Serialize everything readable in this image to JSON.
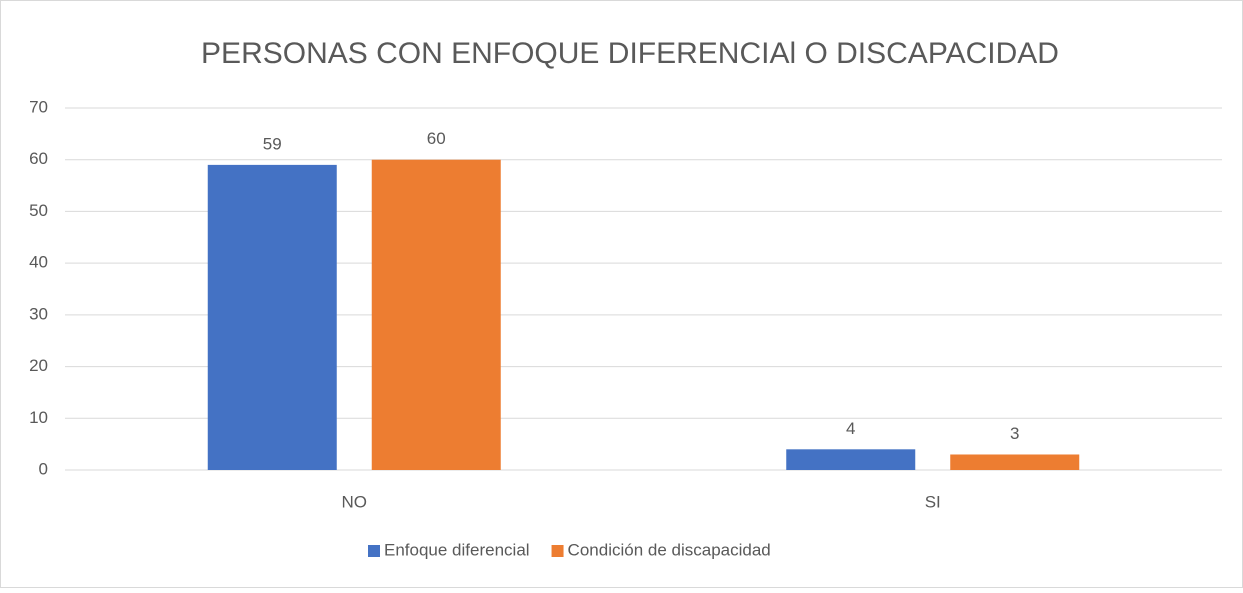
{
  "chart_data": {
    "type": "bar",
    "title": "PERSONAS CON ENFOQUE DIFERENCIAl O DISCAPACIDAD",
    "categories": [
      "NO",
      "SI"
    ],
    "series": [
      {
        "name": "Enfoque diferencial",
        "color": "#4472c4",
        "values": [
          59,
          4
        ]
      },
      {
        "name": "Condición de discapacidad",
        "color": "#ed7d31",
        "values": [
          60,
          3
        ]
      }
    ],
    "ylim": [
      0,
      70
    ],
    "yticks": [
      0,
      10,
      20,
      30,
      40,
      50,
      60,
      70
    ],
    "grid": true,
    "legend": "bottom"
  }
}
